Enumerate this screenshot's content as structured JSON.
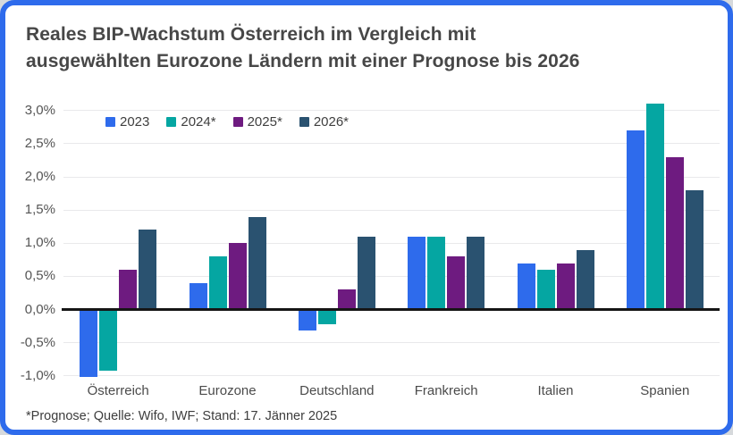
{
  "card": {
    "border_color": "#2e6bec",
    "background": "#ffffff"
  },
  "title": {
    "line1": "Reales BIP-Wachstum Österreich im Vergleich mit",
    "line2": "ausgewählten Eurozone Ländern mit einer Prognose bis 2026"
  },
  "footnote": "*Prognose; Quelle: Wifo, IWF; Stand: 17. Jänner 2025",
  "chart_data": {
    "type": "bar",
    "title": "Reales BIP-Wachstum Österreich im Vergleich mit ausgewählten Eurozone Ländern mit einer Prognose bis 2026",
    "categories": [
      "Österreich",
      "Eurozone",
      "Deutschland",
      "Frankreich",
      "Italien",
      "Spanien"
    ],
    "series": [
      {
        "name": "2023",
        "color": "#2e6bec",
        "values": [
          -1.0,
          0.4,
          -0.3,
          1.1,
          0.7,
          2.7
        ]
      },
      {
        "name": "2024*",
        "color": "#05a6a2",
        "values": [
          -0.9,
          0.8,
          -0.2,
          1.1,
          0.6,
          3.1
        ]
      },
      {
        "name": "2025*",
        "color": "#6e1b80",
        "values": [
          0.6,
          1.0,
          0.3,
          0.8,
          0.7,
          2.3
        ]
      },
      {
        "name": "2026*",
        "color": "#2a5270",
        "values": [
          1.2,
          1.4,
          1.1,
          1.1,
          0.9,
          1.8
        ]
      }
    ],
    "xlabel": "",
    "ylabel": "",
    "ylim": [
      -1.0,
      3.0
    ],
    "yticks": [
      {
        "value": 3.0,
        "label": "3,0%"
      },
      {
        "value": 2.5,
        "label": "2,5%"
      },
      {
        "value": 2.0,
        "label": "2,0%"
      },
      {
        "value": 1.5,
        "label": "1,5%"
      },
      {
        "value": 1.0,
        "label": "1,0%"
      },
      {
        "value": 0.5,
        "label": "0,5%"
      },
      {
        "value": 0.0,
        "label": "0,0%"
      },
      {
        "value": -0.5,
        "label": "-0,5%"
      },
      {
        "value": -1.0,
        "label": "-1,0%"
      }
    ],
    "grid": true,
    "legend_position": "top-left-inside"
  }
}
